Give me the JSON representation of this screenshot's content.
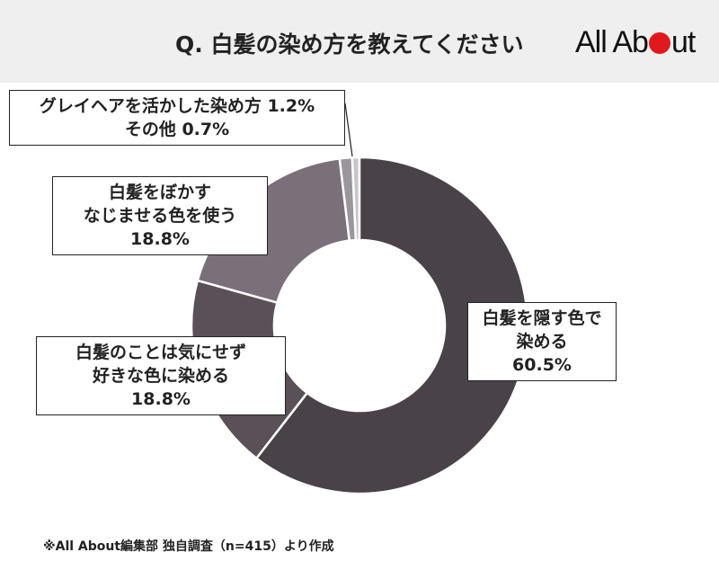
{
  "title": "Q. 白髪の染め方を教えてください",
  "logo": "All About",
  "note": "※All About編集部 独自調査（n=415）より作成",
  "chart_data": {
    "type": "pie",
    "donut": true,
    "start": "top, clockwise",
    "slices": [
      {
        "label": "白髪を隠す色で染める",
        "value": 60.5,
        "color": "#4a4249",
        "lines": [
          "白髪を隠す色で",
          "染める",
          "60.5%"
        ]
      },
      {
        "label": "白髪のことは気にせず好きな色に染める",
        "value": 18.8,
        "color": "#5a5058",
        "lines": [
          "白髪のことは気にせず",
          "好きな色に染める",
          "18.8%"
        ]
      },
      {
        "label": "白髪をぼかすなじませる色を使う",
        "value": 18.8,
        "color": "#7a707a",
        "lines": [
          "白髪をぼかす",
          "なじませる色を使う",
          "18.8%"
        ]
      },
      {
        "label": "グレイヘアを活かした染め方",
        "value": 1.2,
        "color": "#9b969c",
        "lines": [
          "グレイヘアを活かした染め方 1.2%"
        ]
      },
      {
        "label": "その他",
        "value": 0.7,
        "color": "#c9c6ca",
        "lines": [
          "その他 0.7%"
        ]
      }
    ]
  }
}
